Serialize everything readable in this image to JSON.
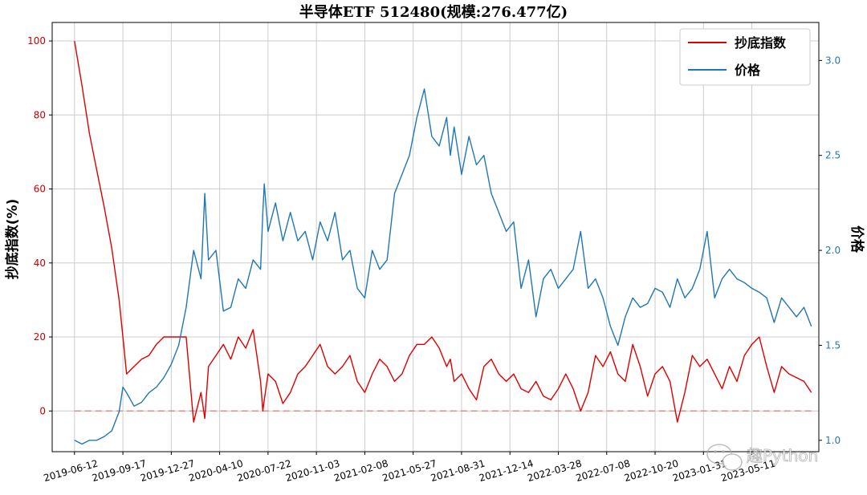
{
  "watermark": "趣Python",
  "chart_data": {
    "type": "line",
    "title": "半导体ETF  512480(规模:276.477亿)",
    "ylabel_left": "抄底指数(%)",
    "ylabel_right": "价格",
    "ylim_left": [
      -11,
      105
    ],
    "ylim_right": [
      0.94,
      3.2
    ],
    "yticks_left": [
      0,
      20,
      40,
      60,
      80,
      100
    ],
    "yticks_right": [
      1.0,
      1.5,
      2.0,
      2.5,
      3.0
    ],
    "ytick_labels_right": [
      "1.0",
      "1.5",
      "2.0",
      "2.5",
      "3.0"
    ],
    "xlim": [
      -3,
      100
    ],
    "xticks": [
      0,
      6.5,
      13,
      19.5,
      26,
      32.5,
      39,
      45.5,
      52,
      58.5,
      65,
      71.5,
      78,
      84.5,
      91
    ],
    "xtick_labels": [
      "2019-06-12",
      "2019-09-17",
      "2019-12-27",
      "2020-04-10",
      "2020-07-22",
      "2020-11-03",
      "2021-02-08",
      "2021-05-27",
      "2021-08-31",
      "2021-12-14",
      "2022-03-28",
      "2022-07-08",
      "2022-10-20",
      "2023-01-31",
      "2023-05-11"
    ],
    "grid": true,
    "legend_position": "top-right",
    "baseline": {
      "y": 0,
      "color": "#e88a8a",
      "style": "dashed"
    },
    "x": [
      0,
      1,
      2,
      3,
      4,
      5,
      6,
      6.5,
      7,
      8,
      9,
      10,
      11,
      12,
      13,
      14,
      15,
      16,
      17,
      17.5,
      18,
      19,
      20,
      21,
      22,
      23,
      24,
      25,
      25.3,
      25.5,
      26,
      27,
      28,
      29,
      30,
      31,
      32,
      33,
      34,
      35,
      36,
      37,
      38,
      39,
      40,
      41,
      42,
      43,
      44,
      45,
      46,
      47,
      48,
      49,
      50,
      50.5,
      51,
      52,
      53,
      54,
      55,
      56,
      57,
      58,
      59,
      60,
      61,
      62,
      63,
      64,
      65,
      66,
      67,
      68,
      69,
      70,
      71,
      72,
      73,
      74,
      75,
      76,
      77,
      78,
      79,
      80,
      81,
      82,
      83,
      84,
      85,
      86,
      87,
      88,
      89,
      90,
      91,
      92,
      93,
      94,
      95,
      96,
      97,
      98,
      99
    ],
    "series": [
      {
        "name": "抄底指数",
        "axis": "left",
        "color": "#dd0000",
        "values": [
          100,
          88,
          75,
          65,
          55,
          44,
          30,
          20,
          10,
          12,
          14,
          15,
          18,
          20,
          20,
          20,
          20,
          -3,
          5,
          -2,
          12,
          15,
          18,
          14,
          20,
          17,
          22,
          8,
          0,
          3,
          10,
          8,
          2,
          5,
          10,
          12,
          15,
          18,
          12,
          10,
          12,
          15,
          8,
          5,
          10,
          14,
          12,
          8,
          10,
          15,
          18,
          18,
          20,
          17,
          12,
          14,
          8,
          10,
          6,
          3,
          12,
          14,
          10,
          8,
          10,
          6,
          5,
          8,
          4,
          3,
          6,
          10,
          6,
          0,
          5,
          15,
          12,
          16,
          10,
          8,
          18,
          12,
          4,
          10,
          12,
          8,
          -3,
          5,
          15,
          12,
          14,
          10,
          6,
          12,
          8,
          15,
          18,
          20,
          12,
          5,
          12,
          10,
          9,
          8,
          5
        ]
      },
      {
        "name": "价格",
        "axis": "right",
        "color": "#1f77b4",
        "values": [
          1.0,
          0.98,
          1.0,
          1.0,
          1.02,
          1.05,
          1.15,
          1.28,
          1.25,
          1.18,
          1.2,
          1.25,
          1.28,
          1.33,
          1.4,
          1.5,
          1.7,
          2.0,
          1.85,
          2.3,
          1.95,
          2.0,
          1.68,
          1.7,
          1.85,
          1.8,
          1.95,
          1.9,
          2.2,
          2.35,
          2.1,
          2.25,
          2.05,
          2.2,
          2.05,
          2.1,
          1.95,
          2.15,
          2.05,
          2.2,
          1.95,
          2.0,
          1.8,
          1.75,
          2.0,
          1.9,
          1.95,
          2.3,
          2.4,
          2.5,
          2.7,
          2.85,
          2.6,
          2.55,
          2.7,
          2.5,
          2.65,
          2.4,
          2.6,
          2.45,
          2.5,
          2.3,
          2.2,
          2.1,
          2.15,
          1.8,
          1.95,
          1.65,
          1.85,
          1.9,
          1.8,
          1.85,
          1.9,
          2.1,
          1.8,
          1.85,
          1.75,
          1.6,
          1.5,
          1.65,
          1.75,
          1.7,
          1.72,
          1.8,
          1.78,
          1.7,
          1.85,
          1.75,
          1.8,
          1.9,
          2.1,
          1.75,
          1.85,
          1.9,
          1.85,
          1.83,
          1.8,
          1.78,
          1.75,
          1.62,
          1.75,
          1.7,
          1.65,
          1.7,
          1.6
        ]
      }
    ]
  }
}
